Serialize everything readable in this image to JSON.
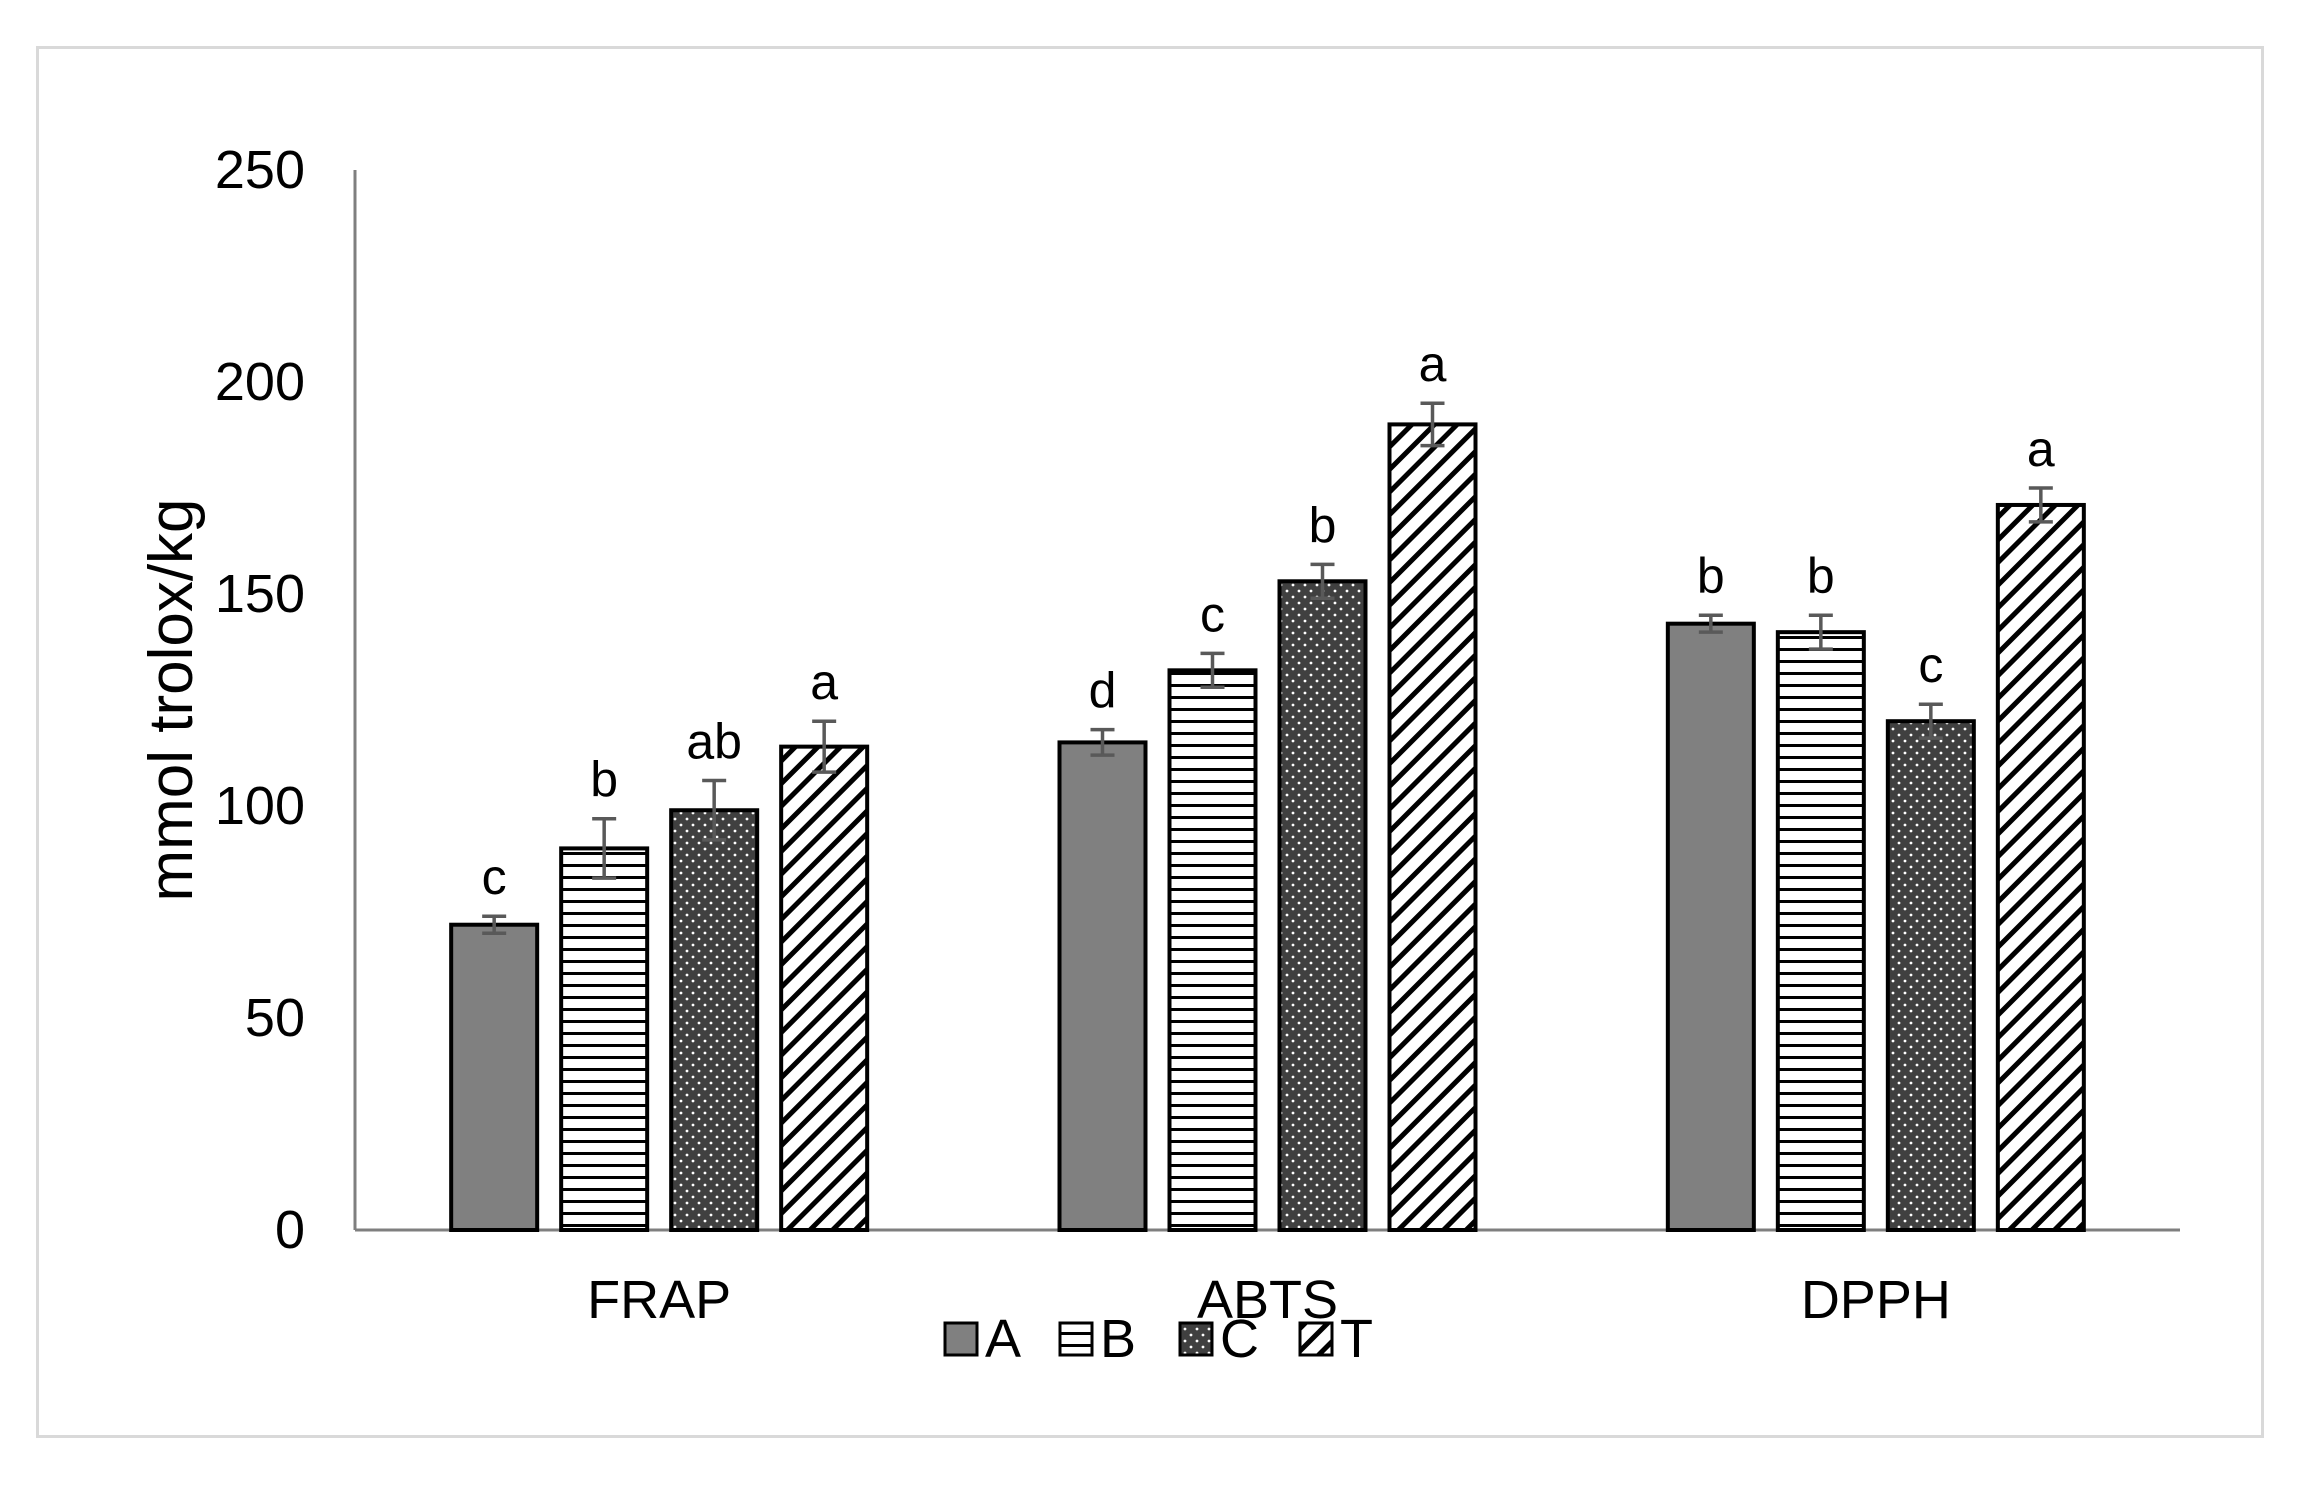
{
  "chart_data": {
    "type": "bar",
    "ylabel": "mmol trolox/kg",
    "xlabel": "",
    "ylim": [
      0,
      250
    ],
    "yticks": [
      0,
      50,
      100,
      150,
      200,
      250
    ],
    "grid": false,
    "legend_position": "bottom",
    "categories": [
      "FRAP",
      "ABTS",
      "DPPH"
    ],
    "series": [
      {
        "name": "A",
        "pattern": "solid",
        "color": "#808080",
        "values": [
          72,
          115,
          143
        ],
        "errors": [
          2,
          3,
          2
        ],
        "letters": [
          "c",
          "d",
          "b"
        ]
      },
      {
        "name": "B",
        "pattern": "horizontal",
        "color": "#ffffff",
        "values": [
          90,
          132,
          141
        ],
        "errors": [
          7,
          4,
          4
        ],
        "letters": [
          "b",
          "c",
          "b"
        ]
      },
      {
        "name": "C",
        "pattern": "dots",
        "color": "#404040",
        "values": [
          99,
          153,
          120
        ],
        "errors": [
          7,
          4,
          4
        ],
        "letters": [
          "ab",
          "b",
          "c"
        ]
      },
      {
        "name": "T",
        "pattern": "diagonal",
        "color": "#ffffff",
        "values": [
          114,
          190,
          171
        ],
        "errors": [
          6,
          5,
          4
        ],
        "letters": [
          "a",
          "a",
          "a"
        ]
      }
    ]
  }
}
